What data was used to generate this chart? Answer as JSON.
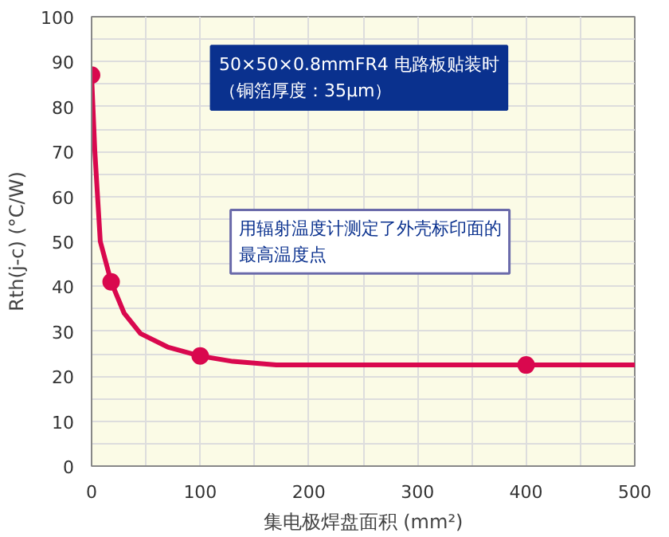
{
  "chart_data": {
    "type": "line",
    "xlabel": "集电极焊盘面积 (mm²)",
    "ylabel": "Rth(j-c) (°C/W)",
    "xlim": [
      0,
      500
    ],
    "xticks": [
      0,
      100,
      200,
      300,
      400,
      500
    ],
    "ylim": [
      0,
      100
    ],
    "yticks": [
      0,
      10,
      20,
      30,
      40,
      50,
      60,
      70,
      80,
      90,
      100
    ],
    "grid": true,
    "series": [
      {
        "color": "#d9084e",
        "marker": "none",
        "line_style": "solid",
        "x": [
          0,
          3,
          8,
          18,
          30,
          45,
          70,
          100,
          130,
          170,
          500
        ],
        "values": [
          87,
          70,
          50,
          41,
          34,
          29.5,
          26.5,
          24.5,
          23.3,
          22.5,
          22.5
        ]
      },
      {
        "type": "scatter",
        "color": "#d9084e",
        "marker": "circle",
        "x": [
          0,
          18,
          100,
          400
        ],
        "values": [
          87,
          41,
          24.5,
          22.5
        ]
      }
    ],
    "annotations": [
      "50×50×0.8mmFR4 电路板贴装时",
      "（铜箔厚度：35μm）",
      "用辐射温度计测定了外壳标印面的",
      "最高温度点"
    ]
  }
}
